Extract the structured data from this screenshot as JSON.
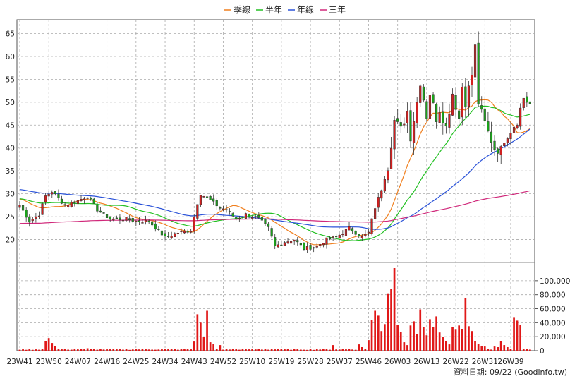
{
  "legend": [
    {
      "label": "季線",
      "color": "#f07f1e"
    },
    {
      "label": "半年",
      "color": "#22c022"
    },
    {
      "label": "年線",
      "color": "#2a52d8"
    },
    {
      "label": "三年",
      "color": "#d0287a"
    }
  ],
  "footer": {
    "label": "資料日期: 09/22  (Goodinfo.tw)"
  },
  "chart_data": {
    "type": "candlestick",
    "price_axis": {
      "ticks": [
        20,
        25,
        30,
        35,
        40,
        45,
        50,
        55,
        60,
        65
      ],
      "range": [
        15,
        68
      ]
    },
    "volume_axis": {
      "ticks": [
        0,
        20000,
        40000,
        60000,
        80000,
        100000
      ],
      "tick_labels": [
        "0",
        "20,000",
        "40,000",
        "60,000",
        "80,000",
        "100,000"
      ],
      "range": [
        0,
        118000
      ]
    },
    "x_labels": [
      {
        "label": "23W41",
        "index": 0
      },
      {
        "label": "23W50",
        "index": 9
      },
      {
        "label": "24W07",
        "index": 18
      },
      {
        "label": "24W16",
        "index": 27
      },
      {
        "label": "24W25",
        "index": 36
      },
      {
        "label": "24W34",
        "index": 45
      },
      {
        "label": "24W43",
        "index": 54
      },
      {
        "label": "24W52",
        "index": 63
      },
      {
        "label": "25W10",
        "index": 72
      },
      {
        "label": "25W19",
        "index": 81
      },
      {
        "label": "25W28",
        "index": 90
      },
      {
        "label": "25W37",
        "index": 99
      },
      {
        "label": "25W46",
        "index": 108
      },
      {
        "label": "26W03",
        "index": 117
      },
      {
        "label": "26W13",
        "index": 126
      },
      {
        "label": "26W22",
        "index": 135
      },
      {
        "label": "26W31",
        "index": 144
      },
      {
        "label": "26W39",
        "index": 152
      }
    ],
    "anchors": [
      [
        0,
        27.5
      ],
      [
        3,
        24.0
      ],
      [
        6,
        25.5
      ],
      [
        8,
        29.5
      ],
      [
        10,
        30.5
      ],
      [
        14,
        27.5
      ],
      [
        18,
        28.5
      ],
      [
        21,
        29.5
      ],
      [
        24,
        26.5
      ],
      [
        28,
        24.5
      ],
      [
        33,
        24.5
      ],
      [
        36,
        24.0
      ],
      [
        40,
        24.0
      ],
      [
        45,
        20.5
      ],
      [
        49,
        21.5
      ],
      [
        53,
        22.0
      ],
      [
        55,
        28.0
      ],
      [
        56,
        30.0
      ],
      [
        58,
        29.0
      ],
      [
        60,
        28.0
      ],
      [
        62,
        27.0
      ],
      [
        64,
        26.5
      ],
      [
        67,
        24.5
      ],
      [
        70,
        25.5
      ],
      [
        74,
        24.5
      ],
      [
        77,
        22.5
      ],
      [
        79,
        18.5
      ],
      [
        82,
        19.5
      ],
      [
        85,
        20.0
      ],
      [
        88,
        18.0
      ],
      [
        92,
        18.5
      ],
      [
        95,
        20.0
      ],
      [
        98,
        20.5
      ],
      [
        100,
        21.5
      ],
      [
        102,
        22.5
      ],
      [
        104,
        21.5
      ],
      [
        106,
        20.5
      ],
      [
        108,
        21.5
      ],
      [
        110,
        27.0
      ],
      [
        112,
        31.0
      ],
      [
        114,
        36.0
      ],
      [
        116,
        46.0
      ],
      [
        118,
        44.0
      ],
      [
        120,
        48.0
      ],
      [
        121,
        42.5
      ],
      [
        123,
        50.0
      ],
      [
        124,
        54.5
      ],
      [
        126,
        47.0
      ],
      [
        127,
        52.0
      ],
      [
        129,
        46.5
      ],
      [
        130,
        48.5
      ],
      [
        132,
        44.5
      ],
      [
        134,
        52.0
      ],
      [
        136,
        46.5
      ],
      [
        137,
        53.5
      ],
      [
        138,
        50.0
      ],
      [
        140,
        56.0
      ],
      [
        141,
        62.0
      ],
      [
        142,
        50.0
      ],
      [
        143,
        47.5
      ],
      [
        145,
        43.5
      ],
      [
        147,
        40.0
      ],
      [
        149,
        39.5
      ],
      [
        150,
        42.0
      ],
      [
        152,
        44.0
      ],
      [
        154,
        46.0
      ],
      [
        156,
        51.0
      ],
      [
        158,
        49.5
      ]
    ],
    "volume_spikes": [
      [
        8,
        14000
      ],
      [
        9,
        18000
      ],
      [
        10,
        11000
      ],
      [
        11,
        7000
      ],
      [
        21,
        3500
      ],
      [
        54,
        13000
      ],
      [
        55,
        52000
      ],
      [
        56,
        40000
      ],
      [
        57,
        20000
      ],
      [
        58,
        57000
      ],
      [
        59,
        12000
      ],
      [
        60,
        9500
      ],
      [
        62,
        8000
      ],
      [
        97,
        8000
      ],
      [
        105,
        9000
      ],
      [
        106,
        5000
      ],
      [
        108,
        15000
      ],
      [
        109,
        44000
      ],
      [
        110,
        57000
      ],
      [
        111,
        50000
      ],
      [
        112,
        28000
      ],
      [
        113,
        38000
      ],
      [
        114,
        82000
      ],
      [
        115,
        88000
      ],
      [
        116,
        118000
      ],
      [
        117,
        37000
      ],
      [
        118,
        27000
      ],
      [
        119,
        12000
      ],
      [
        120,
        8000
      ],
      [
        121,
        36000
      ],
      [
        122,
        42000
      ],
      [
        123,
        24000
      ],
      [
        124,
        59000
      ],
      [
        125,
        34000
      ],
      [
        126,
        22000
      ],
      [
        127,
        45000
      ],
      [
        128,
        34000
      ],
      [
        129,
        49000
      ],
      [
        130,
        26000
      ],
      [
        131,
        20000
      ],
      [
        132,
        14000
      ],
      [
        133,
        9000
      ],
      [
        134,
        34000
      ],
      [
        135,
        30000
      ],
      [
        136,
        36000
      ],
      [
        137,
        31000
      ],
      [
        138,
        75000
      ],
      [
        139,
        35000
      ],
      [
        140,
        28000
      ],
      [
        141,
        14000
      ],
      [
        142,
        10000
      ],
      [
        143,
        7000
      ],
      [
        144,
        6000
      ],
      [
        147,
        6000
      ],
      [
        148,
        5000
      ],
      [
        149,
        14000
      ],
      [
        150,
        8000
      ],
      [
        151,
        5000
      ],
      [
        153,
        47000
      ],
      [
        154,
        43000
      ],
      [
        155,
        37000
      ]
    ]
  }
}
